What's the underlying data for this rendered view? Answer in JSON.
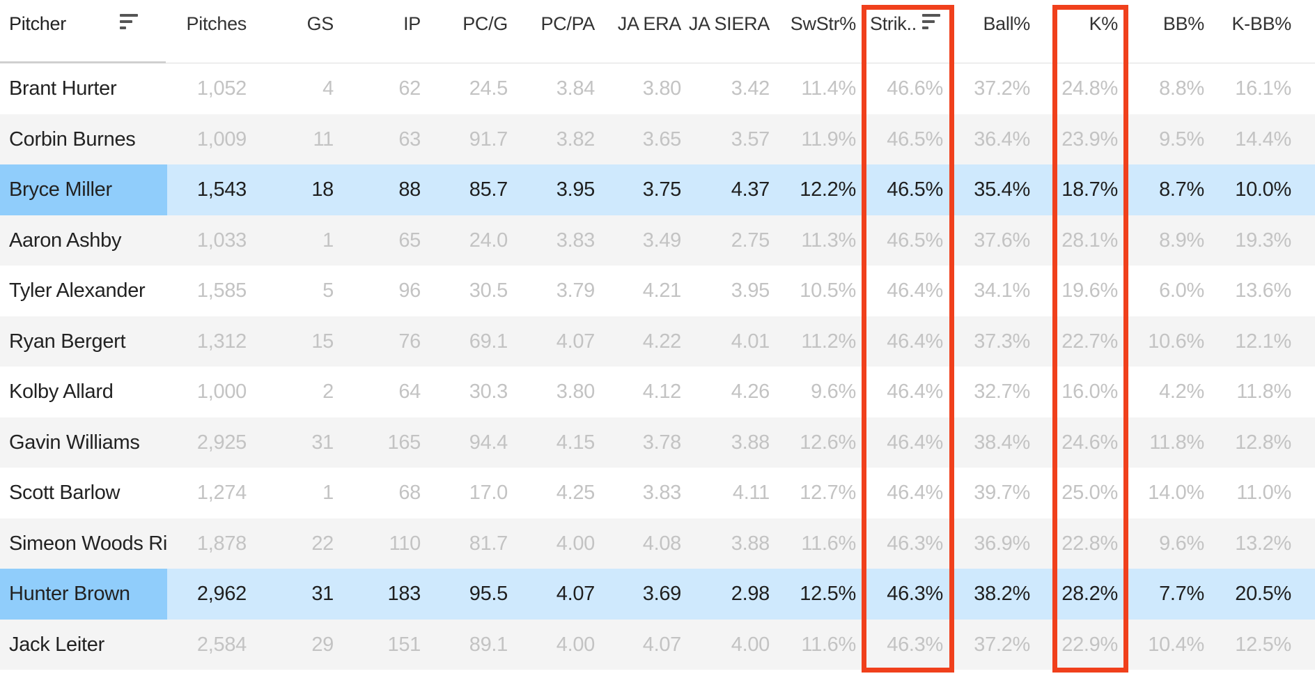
{
  "table": {
    "columns": {
      "pitcher": "Pitcher",
      "pitches": "Pitches",
      "gs": "GS",
      "ip": "IP",
      "pc_g": "PC/G",
      "pc_pa": "PC/PA",
      "ja_era": "JA ERA",
      "ja_siera": "JA SIERA",
      "swstr": "SwStr%",
      "strike": "Strik..",
      "ball": "Ball%",
      "k": "K%",
      "bb": "BB%",
      "kbb": "K-BB%"
    },
    "sort_icons": [
      "sort-icon",
      "sort-icon"
    ],
    "rows": [
      {
        "name": "Brant Hurter",
        "pitches": "1,052",
        "gs": "4",
        "ip": "62",
        "pc_g": "24.5",
        "pc_pa": "3.84",
        "ja_era": "3.80",
        "ja_siera": "3.42",
        "swstr": "11.4%",
        "strike": "46.6%",
        "ball": "37.2%",
        "k": "24.8%",
        "bb": "8.8%",
        "kbb": "16.1%"
      },
      {
        "name": "Corbin Burnes",
        "pitches": "1,009",
        "gs": "11",
        "ip": "63",
        "pc_g": "91.7",
        "pc_pa": "3.82",
        "ja_era": "3.65",
        "ja_siera": "3.57",
        "swstr": "11.9%",
        "strike": "46.5%",
        "ball": "36.4%",
        "k": "23.9%",
        "bb": "9.5%",
        "kbb": "14.4%"
      },
      {
        "name": "Bryce Miller",
        "pitches": "1,543",
        "gs": "18",
        "ip": "88",
        "pc_g": "85.7",
        "pc_pa": "3.95",
        "ja_era": "3.75",
        "ja_siera": "4.37",
        "swstr": "12.2%",
        "strike": "46.5%",
        "ball": "35.4%",
        "k": "18.7%",
        "bb": "8.7%",
        "kbb": "10.0%"
      },
      {
        "name": "Aaron Ashby",
        "pitches": "1,033",
        "gs": "1",
        "ip": "65",
        "pc_g": "24.0",
        "pc_pa": "3.83",
        "ja_era": "3.49",
        "ja_siera": "2.75",
        "swstr": "11.3%",
        "strike": "46.5%",
        "ball": "37.6%",
        "k": "28.1%",
        "bb": "8.9%",
        "kbb": "19.3%"
      },
      {
        "name": "Tyler Alexander",
        "pitches": "1,585",
        "gs": "5",
        "ip": "96",
        "pc_g": "30.5",
        "pc_pa": "3.79",
        "ja_era": "4.21",
        "ja_siera": "3.95",
        "swstr": "10.5%",
        "strike": "46.4%",
        "ball": "34.1%",
        "k": "19.6%",
        "bb": "6.0%",
        "kbb": "13.6%"
      },
      {
        "name": "Ryan Bergert",
        "pitches": "1,312",
        "gs": "15",
        "ip": "76",
        "pc_g": "69.1",
        "pc_pa": "4.07",
        "ja_era": "4.22",
        "ja_siera": "4.01",
        "swstr": "11.2%",
        "strike": "46.4%",
        "ball": "37.3%",
        "k": "22.7%",
        "bb": "10.6%",
        "kbb": "12.1%"
      },
      {
        "name": "Kolby Allard",
        "pitches": "1,000",
        "gs": "2",
        "ip": "64",
        "pc_g": "30.3",
        "pc_pa": "3.80",
        "ja_era": "4.12",
        "ja_siera": "4.26",
        "swstr": "9.6%",
        "strike": "46.4%",
        "ball": "32.7%",
        "k": "16.0%",
        "bb": "4.2%",
        "kbb": "11.8%"
      },
      {
        "name": "Gavin Williams",
        "pitches": "2,925",
        "gs": "31",
        "ip": "165",
        "pc_g": "94.4",
        "pc_pa": "4.15",
        "ja_era": "3.78",
        "ja_siera": "3.88",
        "swstr": "12.6%",
        "strike": "46.4%",
        "ball": "38.4%",
        "k": "24.6%",
        "bb": "11.8%",
        "kbb": "12.8%"
      },
      {
        "name": "Scott Barlow",
        "pitches": "1,274",
        "gs": "1",
        "ip": "68",
        "pc_g": "17.0",
        "pc_pa": "4.25",
        "ja_era": "3.83",
        "ja_siera": "4.11",
        "swstr": "12.7%",
        "strike": "46.4%",
        "ball": "39.7%",
        "k": "25.0%",
        "bb": "14.0%",
        "kbb": "11.0%"
      },
      {
        "name": "Simeon Woods Rich..",
        "pitches": "1,878",
        "gs": "22",
        "ip": "110",
        "pc_g": "81.7",
        "pc_pa": "4.00",
        "ja_era": "4.08",
        "ja_siera": "3.88",
        "swstr": "11.6%",
        "strike": "46.3%",
        "ball": "36.9%",
        "k": "22.8%",
        "bb": "9.6%",
        "kbb": "13.2%"
      },
      {
        "name": "Hunter Brown",
        "pitches": "2,962",
        "gs": "31",
        "ip": "183",
        "pc_g": "95.5",
        "pc_pa": "4.07",
        "ja_era": "3.69",
        "ja_siera": "2.98",
        "swstr": "12.5%",
        "strike": "46.3%",
        "ball": "38.2%",
        "k": "28.2%",
        "bb": "7.7%",
        "kbb": "20.5%"
      },
      {
        "name": "Jack Leiter",
        "pitches": "2,584",
        "gs": "29",
        "ip": "151",
        "pc_g": "89.1",
        "pc_pa": "4.00",
        "ja_era": "4.07",
        "ja_siera": "4.00",
        "swstr": "11.6%",
        "strike": "46.3%",
        "ball": "37.2%",
        "k": "22.9%",
        "bb": "10.4%",
        "kbb": "12.5%"
      }
    ],
    "highlighted_rows": [
      "Bryce Miller",
      "Hunter Brown"
    ],
    "annotation_color": "#f0401c",
    "highlight_row_color": "#cfe9fd",
    "highlight_name_color": "#90cdfb"
  }
}
